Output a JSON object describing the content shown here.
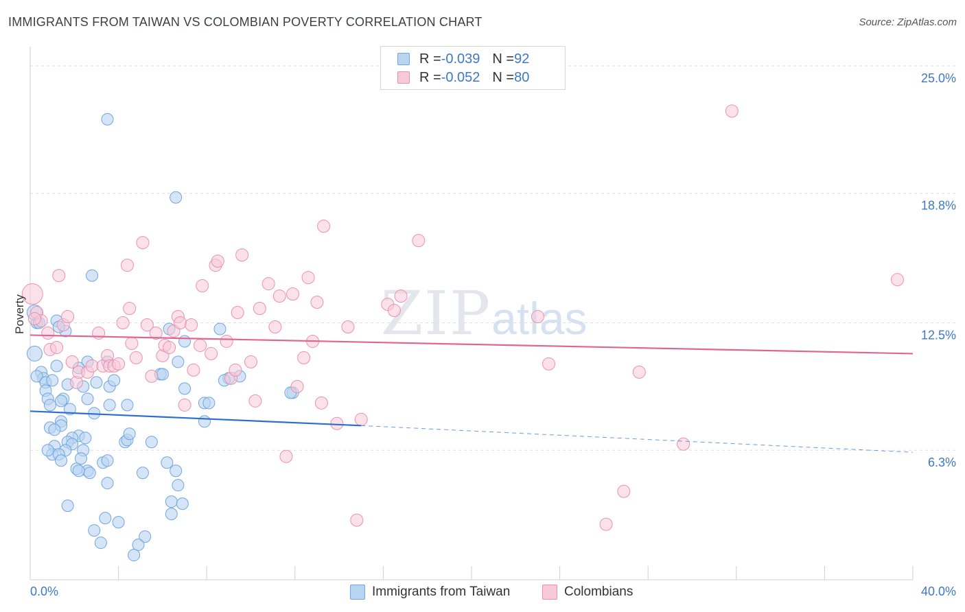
{
  "title": "IMMIGRANTS FROM TAIWAN VS COLOMBIAN POVERTY CORRELATION CHART",
  "source": "Source: ZipAtlas.com",
  "watermark": {
    "zip": "ZIP",
    "atlas": "atlas"
  },
  "colors": {
    "blue": "#6fa6e0",
    "blue_fill": "#b9d4f1",
    "blue_line": "#2a6fd0",
    "pink": "#ec8fae",
    "pink_fill": "#f7cad8",
    "pink_line": "#e0668f",
    "grid": "#dcdcdc",
    "tick_text": "#3d78c7"
  },
  "legend": {
    "rows": [
      {
        "r_label": "R = ",
        "r_value": "-0.039",
        "n_label": "N = ",
        "n_value": "92"
      },
      {
        "r_label": "R = ",
        "r_value": "-0.052",
        "n_label": "N = ",
        "n_value": "80"
      }
    ]
  },
  "bottom_legend": [
    "Immigrants from Taiwan",
    "Colombians"
  ],
  "chart_data": {
    "type": "scatter",
    "title": "IMMIGRANTS FROM TAIWAN VS COLOMBIAN POVERTY CORRELATION CHART",
    "xlabel": "",
    "ylabel": "Poverty",
    "xlim": [
      0,
      40
    ],
    "ylim": [
      0,
      25.8
    ],
    "x_tick_labels": [
      "0.0%",
      "40.0%"
    ],
    "y_ticks": [
      6.3,
      12.5,
      18.8,
      25.0
    ],
    "y_tick_labels": [
      "6.3%",
      "12.5%",
      "18.8%",
      "25.0%"
    ],
    "grid": "horizontal dashed",
    "legend_placement": "top-center",
    "series": [
      {
        "name": "Immigrants from Taiwan",
        "color": "#6fa6e0",
        "trend": {
          "x": [
            0,
            15
          ],
          "y": [
            8.2,
            7.5
          ],
          "dashed_extension_to": [
            40,
            6.2
          ]
        },
        "points": [
          [
            3.5,
            22.4
          ],
          [
            6.6,
            18.6
          ],
          [
            2.8,
            14.8
          ],
          [
            1.6,
            12.1
          ],
          [
            2.6,
            10.6
          ],
          [
            3.5,
            10.6
          ],
          [
            6.7,
            10.6
          ],
          [
            0.2,
            11.0
          ],
          [
            0.3,
            12.5
          ],
          [
            0.5,
            10.1
          ],
          [
            0.6,
            9.8
          ],
          [
            0.3,
            9.9
          ],
          [
            0.7,
            9.6
          ],
          [
            1.0,
            9.7
          ],
          [
            1.7,
            9.5
          ],
          [
            2.4,
            9.4
          ],
          [
            3.0,
            9.6
          ],
          [
            3.6,
            9.4
          ],
          [
            0.7,
            9.2
          ],
          [
            0.8,
            8.8
          ],
          [
            1.5,
            8.8
          ],
          [
            1.4,
            8.7
          ],
          [
            2.6,
            8.8
          ],
          [
            3.6,
            8.5
          ],
          [
            4.4,
            8.5
          ],
          [
            0.9,
            8.5
          ],
          [
            1.8,
            8.3
          ],
          [
            2.9,
            8.1
          ],
          [
            5.9,
            10.0
          ],
          [
            6.0,
            10.0
          ],
          [
            7.0,
            9.3
          ],
          [
            7.9,
            8.6
          ],
          [
            8.1,
            8.6
          ],
          [
            9.0,
            9.8
          ],
          [
            9.5,
            9.9
          ],
          [
            8.8,
            9.7
          ],
          [
            11.9,
            9.1
          ],
          [
            11.8,
            9.1
          ],
          [
            6.3,
            12.2
          ],
          [
            7.0,
            11.6
          ],
          [
            8.6,
            12.2
          ],
          [
            1.4,
            7.7
          ],
          [
            1.4,
            7.5
          ],
          [
            0.9,
            7.4
          ],
          [
            1.1,
            7.3
          ],
          [
            2.2,
            7.0
          ],
          [
            1.9,
            6.9
          ],
          [
            2.5,
            6.9
          ],
          [
            1.7,
            6.7
          ],
          [
            1.9,
            6.6
          ],
          [
            4.3,
            6.7
          ],
          [
            4.4,
            6.8
          ],
          [
            4.5,
            7.1
          ],
          [
            5.5,
            6.7
          ],
          [
            1.1,
            6.5
          ],
          [
            1.6,
            6.3
          ],
          [
            1.0,
            6.1
          ],
          [
            1.3,
            6.1
          ],
          [
            0.8,
            6.3
          ],
          [
            2.4,
            6.3
          ],
          [
            2.3,
            5.9
          ],
          [
            1.4,
            5.8
          ],
          [
            3.3,
            5.7
          ],
          [
            3.5,
            5.8
          ],
          [
            6.2,
            5.7
          ],
          [
            2.1,
            5.4
          ],
          [
            2.6,
            5.3
          ],
          [
            2.7,
            5.2
          ],
          [
            2.2,
            5.3
          ],
          [
            5.1,
            5.2
          ],
          [
            6.6,
            5.3
          ],
          [
            6.7,
            4.6
          ],
          [
            3.5,
            4.7
          ],
          [
            1.7,
            3.6
          ],
          [
            6.4,
            3.8
          ],
          [
            6.9,
            3.7
          ],
          [
            3.4,
            3.0
          ],
          [
            4.0,
            2.8
          ],
          [
            6.4,
            3.2
          ],
          [
            2.9,
            2.4
          ],
          [
            3.2,
            1.8
          ],
          [
            5.2,
            2.1
          ],
          [
            4.9,
            1.7
          ],
          [
            4.7,
            1.2
          ],
          [
            7.9,
            7.7
          ],
          [
            1.2,
            12.6
          ],
          [
            1.3,
            12.3
          ],
          [
            1.2,
            10.4
          ],
          [
            0.2,
            13.0
          ],
          [
            0.4,
            12.5
          ],
          [
            2.2,
            10.3
          ],
          [
            3.8,
            9.7
          ]
        ]
      },
      {
        "name": "Colombians",
        "color": "#ec8fae",
        "trend": {
          "x": [
            0,
            40
          ],
          "y": [
            11.9,
            11.0
          ]
        },
        "points": [
          [
            0.1,
            13.9
          ],
          [
            0.3,
            13.0
          ],
          [
            0.5,
            12.6
          ],
          [
            0.8,
            12.0
          ],
          [
            0.9,
            11.2
          ],
          [
            1.2,
            11.3
          ],
          [
            1.3,
            14.8
          ],
          [
            1.5,
            12.4
          ],
          [
            1.7,
            12.8
          ],
          [
            1.9,
            10.6
          ],
          [
            2.1,
            9.6
          ],
          [
            2.2,
            10.1
          ],
          [
            2.6,
            10.1
          ],
          [
            2.8,
            10.4
          ],
          [
            3.1,
            12.0
          ],
          [
            3.3,
            10.4
          ],
          [
            3.5,
            10.9
          ],
          [
            3.6,
            10.4
          ],
          [
            3.8,
            10.4
          ],
          [
            4.0,
            10.5
          ],
          [
            4.2,
            12.5
          ],
          [
            4.4,
            15.3
          ],
          [
            4.5,
            13.2
          ],
          [
            4.6,
            11.5
          ],
          [
            4.8,
            10.8
          ],
          [
            5.1,
            16.4
          ],
          [
            5.3,
            12.4
          ],
          [
            5.5,
            9.9
          ],
          [
            5.7,
            12.0
          ],
          [
            6.0,
            10.9
          ],
          [
            6.1,
            11.4
          ],
          [
            6.3,
            11.3
          ],
          [
            6.5,
            12.1
          ],
          [
            6.7,
            12.8
          ],
          [
            6.8,
            12.5
          ],
          [
            7.0,
            8.5
          ],
          [
            7.3,
            12.4
          ],
          [
            7.4,
            10.2
          ],
          [
            7.7,
            11.4
          ],
          [
            7.8,
            14.3
          ],
          [
            8.2,
            11.0
          ],
          [
            8.4,
            15.3
          ],
          [
            8.5,
            15.5
          ],
          [
            8.9,
            11.6
          ],
          [
            9.1,
            9.8
          ],
          [
            9.3,
            10.2
          ],
          [
            9.4,
            13.0
          ],
          [
            9.6,
            15.8
          ],
          [
            10.0,
            10.6
          ],
          [
            10.2,
            8.7
          ],
          [
            10.4,
            13.2
          ],
          [
            10.8,
            14.4
          ],
          [
            11.1,
            12.3
          ],
          [
            11.3,
            13.8
          ],
          [
            11.6,
            6.0
          ],
          [
            11.9,
            13.9
          ],
          [
            12.1,
            9.4
          ],
          [
            12.4,
            10.8
          ],
          [
            12.6,
            14.7
          ],
          [
            12.8,
            11.6
          ],
          [
            13.0,
            13.5
          ],
          [
            13.2,
            8.6
          ],
          [
            13.3,
            17.2
          ],
          [
            13.9,
            7.6
          ],
          [
            14.4,
            12.3
          ],
          [
            14.8,
            2.9
          ],
          [
            15.0,
            7.8
          ],
          [
            16.2,
            13.4
          ],
          [
            16.5,
            13.1
          ],
          [
            16.8,
            13.8
          ],
          [
            17.6,
            16.5
          ],
          [
            23.0,
            12.8
          ],
          [
            23.5,
            10.5
          ],
          [
            26.1,
            2.7
          ],
          [
            26.9,
            4.3
          ],
          [
            27.6,
            10.1
          ],
          [
            29.6,
            6.6
          ],
          [
            31.8,
            22.8
          ],
          [
            39.3,
            14.6
          ],
          [
            0.2,
            12.7
          ]
        ]
      }
    ]
  }
}
